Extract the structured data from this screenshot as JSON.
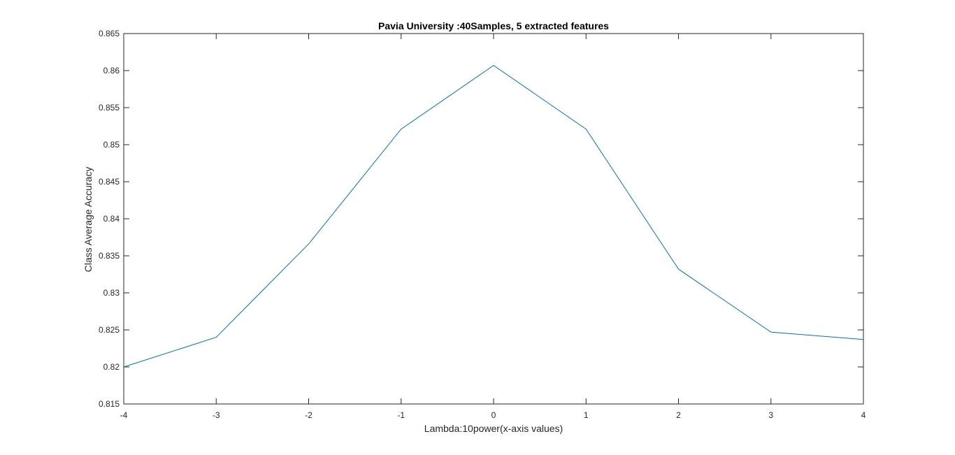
{
  "chart_data": {
    "type": "line",
    "title": "Pavia University :40Samples, 5 extracted features",
    "xlabel": "Lambda:10power(x-axis values)",
    "ylabel": "Class Average Accuracy",
    "xlim": [
      -4,
      4
    ],
    "ylim": [
      0.815,
      0.865
    ],
    "xticks": [
      -4,
      -3,
      -2,
      -1,
      0,
      1,
      2,
      3,
      4
    ],
    "xtick_labels": [
      "-4",
      "-3",
      "-2",
      "-1",
      "0",
      "1",
      "2",
      "3",
      "4"
    ],
    "yticks": [
      0.815,
      0.82,
      0.825,
      0.83,
      0.835,
      0.84,
      0.845,
      0.85,
      0.855,
      0.86,
      0.865
    ],
    "ytick_labels": [
      "0.815",
      "0.82",
      "0.825",
      "0.83",
      "0.835",
      "0.84",
      "0.845",
      "0.85",
      "0.855",
      "0.86",
      "0.865"
    ],
    "grid": false,
    "legend": false,
    "series": [
      {
        "color": "#0072BD",
        "x": [
          -4,
          -3,
          -2,
          -1,
          0,
          1,
          2,
          3,
          4
        ],
        "y": [
          0.82,
          0.824,
          0.8366,
          0.8521,
          0.8607,
          0.8521,
          0.8332,
          0.8247,
          0.8237
        ]
      }
    ]
  }
}
